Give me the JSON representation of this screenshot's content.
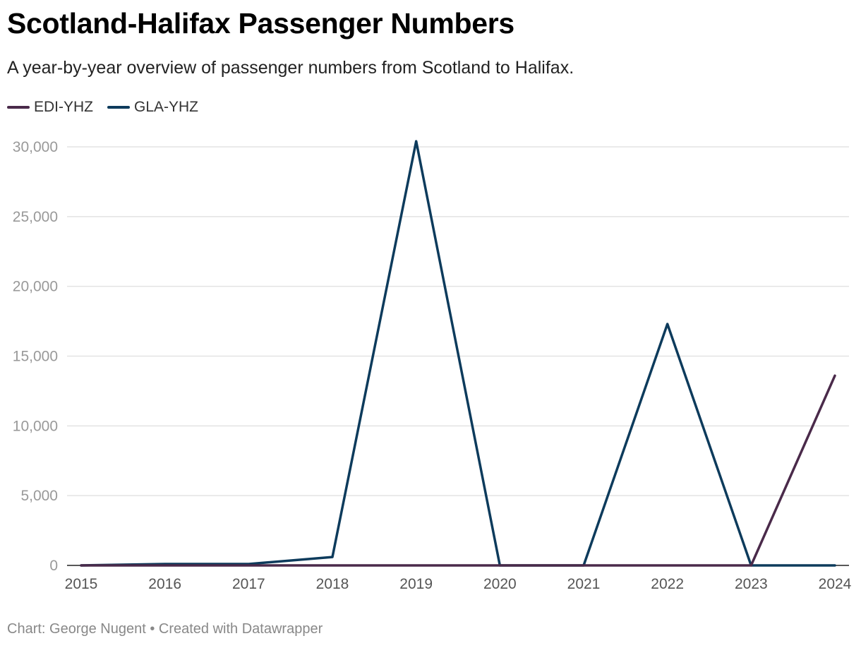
{
  "chart_data": {
    "type": "line",
    "title": "Scotland-Halifax Passenger Numbers",
    "subtitle": "A year-by-year overview of passenger numbers from Scotland to Halifax.",
    "x": [
      2015,
      2016,
      2017,
      2018,
      2019,
      2020,
      2021,
      2022,
      2023,
      2024
    ],
    "x_tick_labels": [
      "2015",
      "2016",
      "2017",
      "2018",
      "2019",
      "2020",
      "2021",
      "2022",
      "2023",
      "2024"
    ],
    "y_tick_values": [
      0,
      5000,
      10000,
      15000,
      20000,
      25000,
      30000
    ],
    "y_tick_labels": [
      "0",
      "5,000",
      "10,000",
      "15,000",
      "20,000",
      "25,000",
      "30,000"
    ],
    "ylim": [
      0,
      30000
    ],
    "series": [
      {
        "name": "EDI-YHZ",
        "color": "#4a2a4a",
        "values": [
          0,
          0,
          0,
          0,
          0,
          0,
          0,
          0,
          0,
          13600
        ]
      },
      {
        "name": "GLA-YHZ",
        "color": "#0d3b5c",
        "values": [
          0,
          100,
          100,
          600,
          30400,
          0,
          0,
          17300,
          0,
          0
        ]
      }
    ],
    "legend_position": "top-left",
    "grid": true
  },
  "footer": {
    "credit": "Chart: George Nugent • Created with Datawrapper"
  }
}
